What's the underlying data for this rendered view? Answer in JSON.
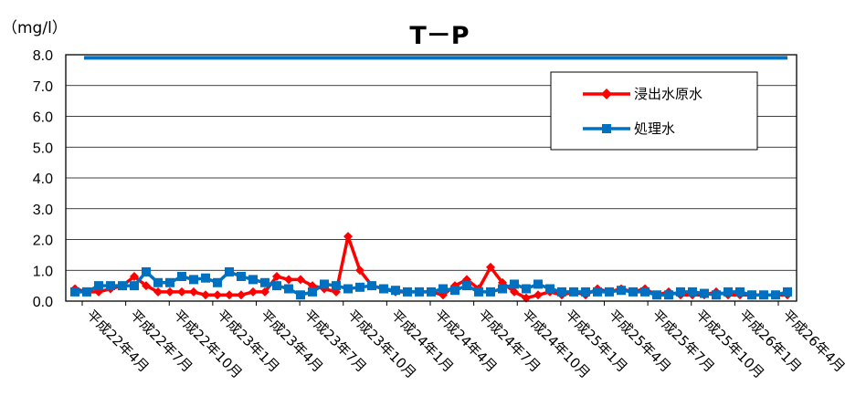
{
  "chart_data": {
    "type": "line",
    "title": "T－P",
    "ylabel": "（mg/l）",
    "ylim": [
      0,
      8
    ],
    "yticks": [
      "0.0",
      "1.0",
      "2.0",
      "3.0",
      "4.0",
      "5.0",
      "6.0",
      "7.0",
      "8.0"
    ],
    "grid": true,
    "legend_position": "top-right",
    "x_tick_labels": [
      "平成22年4月",
      "平成22年7月",
      "平成22年10月",
      "平成23年1月",
      "平成23年4月",
      "平成23年7月",
      "平成23年10月",
      "平成24年1月",
      "平成24年4月",
      "平成24年7月",
      "平成24年10月",
      "平成25年1月",
      "平成25年4月",
      "平成25年7月",
      "平成25年10月",
      "平成26年1月",
      "平成26年4月"
    ],
    "series": [
      {
        "name": "浸出水原水",
        "color": "#ff0000",
        "marker": "diamond",
        "values": [
          0.4,
          0.3,
          0.3,
          0.4,
          0.5,
          0.8,
          0.5,
          0.3,
          0.3,
          0.3,
          0.3,
          0.2,
          0.2,
          0.2,
          0.2,
          0.3,
          0.3,
          0.8,
          0.7,
          0.7,
          0.5,
          0.4,
          0.3,
          2.1,
          1.0,
          0.5,
          0.4,
          0.3,
          0.3,
          0.3,
          0.3,
          0.2,
          0.5,
          0.7,
          0.4,
          1.1,
          0.6,
          0.3,
          0.1,
          0.2,
          0.3,
          0.2,
          0.3,
          0.2,
          0.4,
          0.3,
          0.4,
          0.3,
          0.4,
          0.2,
          0.3,
          0.2,
          0.2,
          0.2,
          0.3,
          0.2,
          0.2,
          0.2,
          0.2,
          0.2,
          0.2
        ]
      },
      {
        "name": "処理水",
        "color": "#0070c0",
        "marker": "square",
        "values": [
          0.3,
          0.3,
          0.5,
          0.5,
          0.5,
          0.5,
          0.95,
          0.6,
          0.6,
          0.8,
          0.7,
          0.75,
          0.6,
          0.95,
          0.8,
          0.7,
          0.6,
          0.5,
          0.4,
          0.2,
          0.3,
          0.55,
          0.5,
          0.4,
          0.45,
          0.5,
          0.4,
          0.35,
          0.3,
          0.3,
          0.3,
          0.4,
          0.35,
          0.5,
          0.3,
          0.3,
          0.4,
          0.55,
          0.4,
          0.55,
          0.4,
          0.3,
          0.3,
          0.3,
          0.3,
          0.3,
          0.35,
          0.3,
          0.3,
          0.2,
          0.2,
          0.3,
          0.3,
          0.25,
          0.2,
          0.3,
          0.3,
          0.2,
          0.2,
          0.2,
          0.3
        ]
      },
      {
        "name": "",
        "color": "#0070c0",
        "marker": "none",
        "values": [
          7.9,
          7.9
        ]
      }
    ]
  }
}
